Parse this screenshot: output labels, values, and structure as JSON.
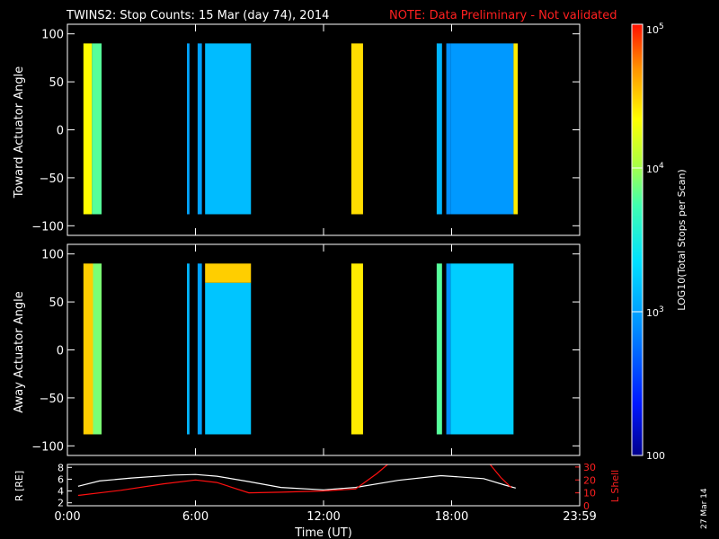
{
  "header": {
    "title": "TWINS2: Stop Counts: 15 Mar (day  74), 2014",
    "note": "NOTE: Data Preliminary - Not validated"
  },
  "side_date": "27 Mar 14",
  "colorbar": {
    "label": "LOG10(Total Stops per Scan)",
    "ticks": [
      {
        "value": 100,
        "label": "100"
      },
      {
        "value": 1000,
        "label": "10^3"
      },
      {
        "value": 10000,
        "label": "10^4"
      },
      {
        "value": 100000,
        "label": "10^5"
      }
    ],
    "scale": "log",
    "range": [
      100,
      100000
    ]
  },
  "chart_data": [
    {
      "type": "heatmap",
      "ylabel": "Toward Actuator Angle",
      "ylim": [
        -110,
        110
      ],
      "yticks": [
        -100,
        -50,
        0,
        50,
        100
      ],
      "xlim": [
        0,
        24
      ],
      "segments": [
        {
          "x0": 0.75,
          "x1": 1.15,
          "y0": -88,
          "y1": 90,
          "level": 4.35
        },
        {
          "x0": 1.15,
          "x1": 1.6,
          "y0": -88,
          "y1": 90,
          "level": 3.8
        },
        {
          "x0": 5.6,
          "x1": 5.72,
          "y0": -88,
          "y1": 90,
          "level": 3.0
        },
        {
          "x0": 6.1,
          "x1": 6.3,
          "y0": -88,
          "y1": 90,
          "level": 3.0
        },
        {
          "x0": 6.45,
          "x1": 8.6,
          "y0": -88,
          "y1": 90,
          "level": 3.15
        },
        {
          "x0": 13.3,
          "x1": 13.85,
          "y0": -88,
          "y1": 90,
          "level": 4.45
        },
        {
          "x0": 17.3,
          "x1": 17.55,
          "y0": -88,
          "y1": 90,
          "level": 3.1
        },
        {
          "x0": 17.75,
          "x1": 17.95,
          "y0": -88,
          "y1": 90,
          "level": 2.9
        },
        {
          "x0": 17.95,
          "x1": 20.9,
          "y0": -88,
          "y1": 90,
          "level": 2.95
        },
        {
          "x0": 20.9,
          "x1": 21.1,
          "y0": -88,
          "y1": 90,
          "level": 4.4
        }
      ]
    },
    {
      "type": "heatmap",
      "ylabel": "Away Actuator Angle",
      "ylim": [
        -110,
        110
      ],
      "yticks": [
        -100,
        -50,
        0,
        50,
        100
      ],
      "xlim": [
        0,
        24
      ],
      "segments": [
        {
          "x0": 0.75,
          "x1": 1.2,
          "y0": -88,
          "y1": 90,
          "level": 4.5
        },
        {
          "x0": 1.2,
          "x1": 1.6,
          "y0": -88,
          "y1": 90,
          "level": 3.9
        },
        {
          "x0": 5.6,
          "x1": 5.72,
          "y0": -88,
          "y1": 90,
          "level": 3.1
        },
        {
          "x0": 6.1,
          "x1": 6.3,
          "y0": -88,
          "y1": 90,
          "level": 3.0
        },
        {
          "x0": 6.45,
          "x1": 8.6,
          "y0": -88,
          "y1": 70,
          "level": 3.2
        },
        {
          "x0": 6.45,
          "x1": 8.6,
          "y0": 70,
          "y1": 90,
          "level": 4.5
        },
        {
          "x0": 13.3,
          "x1": 13.85,
          "y0": -88,
          "y1": 90,
          "level": 4.4
        },
        {
          "x0": 17.3,
          "x1": 17.55,
          "y0": -88,
          "y1": 90,
          "level": 3.8
        },
        {
          "x0": 17.75,
          "x1": 17.95,
          "y0": -88,
          "y1": 90,
          "level": 2.9
        },
        {
          "x0": 17.95,
          "x1": 20.9,
          "y0": -88,
          "y1": 90,
          "level": 3.25
        }
      ]
    },
    {
      "type": "line",
      "xlabel": "Time (UT)",
      "xlim": [
        0,
        24
      ],
      "xticks": [
        {
          "value": 0,
          "label": "0:00"
        },
        {
          "value": 6,
          "label": "6:00"
        },
        {
          "value": 12,
          "label": "12:00"
        },
        {
          "value": 18,
          "label": "18:00"
        },
        {
          "value": 24,
          "label": "23:59"
        }
      ],
      "left_axis": {
        "label": "R [RE]",
        "ylim": [
          1.5,
          8.5
        ],
        "yticks": [
          2,
          4,
          6,
          8
        ]
      },
      "right_axis": {
        "label": "L Shell",
        "ylim": [
          0,
          32
        ],
        "yticks": [
          0,
          10,
          20,
          30
        ]
      },
      "series": [
        {
          "color": "#ffffff",
          "axis": "left",
          "x": [
            0.5,
            1.5,
            3.0,
            5.0,
            6.0,
            7.0,
            8.5,
            10.0,
            12.0,
            13.5,
            15.5,
            17.5,
            19.5,
            20.5,
            21.0
          ],
          "y": [
            4.8,
            5.7,
            6.2,
            6.7,
            6.8,
            6.5,
            5.6,
            4.6,
            4.2,
            4.6,
            5.8,
            6.6,
            6.1,
            5.0,
            4.5
          ]
        },
        {
          "color": "#ff1010",
          "axis": "right",
          "x": [
            0.5,
            2.5,
            4.5,
            6.0,
            7.0,
            8.5,
            10.0,
            12.0,
            13.5,
            14.5,
            15.0
          ],
          "y": [
            8,
            12,
            17,
            20,
            18,
            10,
            10.5,
            11.5,
            13,
            25,
            32
          ]
        },
        {
          "color": "#ff1010",
          "axis": "right",
          "x": [
            19.8,
            20.3,
            20.8
          ],
          "y": [
            32,
            22,
            14
          ]
        }
      ]
    }
  ]
}
